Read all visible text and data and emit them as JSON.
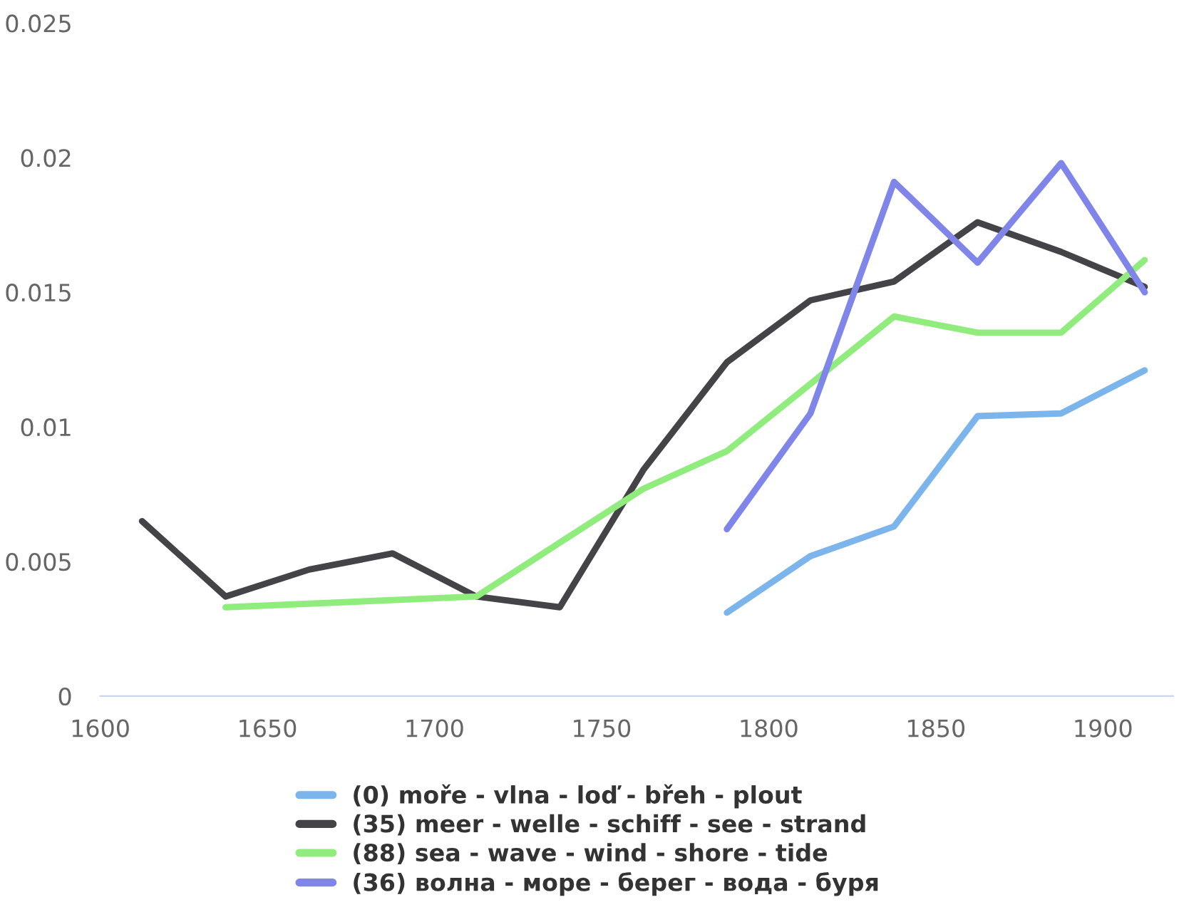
{
  "chart_data": {
    "type": "line",
    "series": [
      {
        "name": "(0) moře - vlna - loď - břeh - plout",
        "color": "#7cb5ec",
        "x": [
          1787.5,
          1812.5,
          1837.5,
          1862.5,
          1887.5,
          1912.5
        ],
        "values": [
          0.0031,
          0.0052,
          0.0063,
          0.0104,
          0.0105,
          0.0121
        ]
      },
      {
        "name": "(35) meer - welle - schiff - see - strand",
        "color": "#434348",
        "x": [
          1612.5,
          1637.5,
          1662.5,
          1687.5,
          1712.5,
          1737.5,
          1762.5,
          1787.5,
          1812.5,
          1837.5,
          1862.5,
          1887.5,
          1912.5
        ],
        "values": [
          0.0065,
          0.0037,
          0.0047,
          0.0053,
          0.0037,
          0.0033,
          0.0084,
          0.0124,
          0.0147,
          0.0154,
          0.0176,
          0.0165,
          0.0152
        ]
      },
      {
        "name": "(88) sea - wave - wind - shore - tide",
        "color": "#90ed7d",
        "x": [
          1637.5,
          1712.5,
          1737.5,
          1762.5,
          1787.5,
          1812.5,
          1837.5,
          1862.5,
          1887.5,
          1912.5
        ],
        "values": [
          0.0033,
          0.0037,
          0.0057,
          0.0077,
          0.0091,
          0.0116,
          0.0141,
          0.0135,
          0.0135,
          0.0162
        ]
      },
      {
        "name": "(36) волна - море - берег - вода - буря",
        "color": "#8085e9",
        "x": [
          1787.5,
          1812.5,
          1837.5,
          1862.5,
          1887.5,
          1912.5
        ],
        "values": [
          0.0062,
          0.0105,
          0.0191,
          0.0161,
          0.0198,
          0.015
        ]
      }
    ],
    "xlim": [
      1600,
      1921
    ],
    "xticks": [
      1600,
      1650,
      1700,
      1750,
      1800,
      1850,
      1900
    ],
    "ylim": [
      0,
      0.025
    ],
    "yticks": [
      0,
      0.005,
      0.01,
      0.015,
      0.02,
      0.025
    ],
    "grid": false,
    "legend": "bottom",
    "marker": "none",
    "line_style": "solid"
  }
}
